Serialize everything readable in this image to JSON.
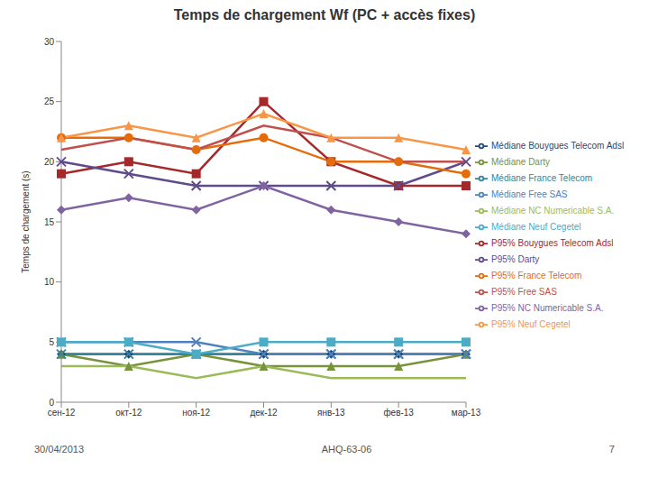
{
  "chart_data": {
    "type": "line",
    "title": "Temps de chargement Wf (PC + accès fixes)",
    "y_label": "Temps de chargement (s)",
    "categories": [
      "сен-12",
      "окт-12",
      "ноя-12",
      "дек-12",
      "янв-13",
      "фев-13",
      "мар-13"
    ],
    "ylim": [
      0,
      30
    ],
    "yticks": [
      0,
      5,
      10,
      15,
      20,
      25,
      30
    ],
    "grid": false,
    "legend": "right",
    "series": [
      {
        "name": "Médiane Bouygues Telecom Adsl",
        "color": "#1f497d",
        "marker": "diamond",
        "values": [
          4,
          4,
          4,
          4,
          4,
          4,
          4
        ]
      },
      {
        "name": "P95% Bouygues Telecom Adsl",
        "color": "#a5282b",
        "marker": "square",
        "values": [
          19,
          20,
          19,
          25,
          20,
          18,
          18
        ]
      },
      {
        "name": "Médiane Darty",
        "color": "#77933c",
        "marker": "triangle",
        "values": [
          4,
          3,
          4,
          3,
          3,
          3,
          4
        ]
      },
      {
        "name": "P95% Darty",
        "color": "#5f4b8b",
        "marker": "cross",
        "values": [
          20,
          19,
          18,
          18,
          18,
          18,
          20
        ]
      },
      {
        "name": "Médiane France Telecom",
        "color": "#31859c",
        "marker": "cross",
        "values": [
          4,
          4,
          4,
          4,
          4,
          4,
          4
        ]
      },
      {
        "name": "P95% France Telecom",
        "color": "#e46c0a",
        "marker": "circle",
        "values": [
          22,
          22,
          21,
          22,
          20,
          20,
          19
        ]
      },
      {
        "name": "Médiane Free SAS",
        "color": "#4f81bd",
        "marker": "cross",
        "values": [
          5,
          5,
          5,
          4,
          4,
          4,
          4
        ]
      },
      {
        "name": "P95% Free SAS",
        "color": "#c0504d",
        "marker": "none",
        "values": [
          21,
          22,
          21,
          23,
          22,
          20,
          20
        ]
      },
      {
        "name": "Médiane NC Numericable S.A.",
        "color": "#9bbb59",
        "marker": "none",
        "values": [
          3,
          3,
          2,
          3,
          2,
          2,
          2
        ]
      },
      {
        "name": "P95% NC Numericable S.A.",
        "color": "#8064a2",
        "marker": "diamond",
        "values": [
          16,
          17,
          16,
          18,
          16,
          15,
          14
        ]
      },
      {
        "name": "Médiane Neuf Cegetel",
        "color": "#4bacc6",
        "marker": "square",
        "values": [
          5,
          5,
          4,
          5,
          5,
          5,
          5
        ]
      },
      {
        "name": "P95% Neuf Cegetel",
        "color": "#f79646",
        "marker": "triangle",
        "values": [
          22,
          23,
          22,
          24,
          22,
          22,
          21
        ]
      }
    ]
  },
  "footer": {
    "date": "30/04/2013",
    "reference": "AHQ-63-06",
    "page": "7"
  }
}
